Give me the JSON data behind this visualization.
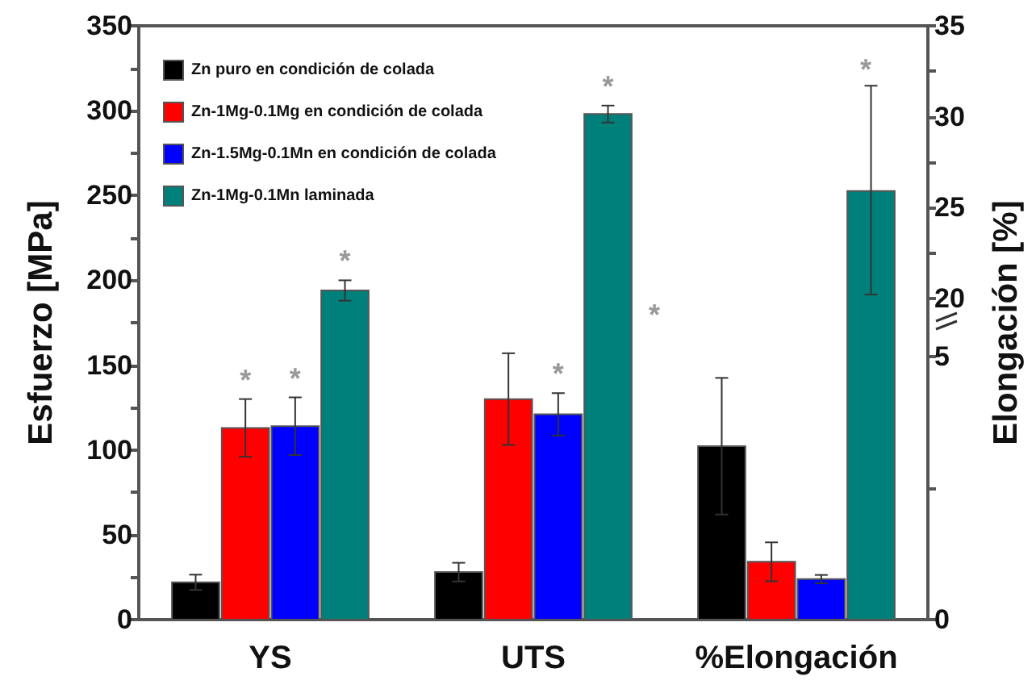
{
  "chart_data": {
    "type": "bar",
    "ylabel": "Esfuerzo [MPa]",
    "y2label": "Elongación [%]",
    "categories": [
      "YS",
      "UTS",
      "%Elongación"
    ],
    "series": [
      {
        "name": "Zn puro en condición de colada",
        "color": "#000000",
        "values": [
          22,
          28,
          null
        ],
        "errors": [
          4.5,
          5.5,
          null
        ]
      },
      {
        "name": "Zn-1Mg-0.1Mg en condición de colada",
        "color": "#ff0000",
        "values": [
          113,
          130,
          null
        ],
        "errors": [
          17,
          27,
          null
        ],
        "value_labels": [
          "*",
          null,
          null
        ]
      },
      {
        "name": "Zn-1.5Mg-0.1Mn en condición de colada",
        "color": "#0000ff",
        "values": [
          114,
          121,
          null
        ],
        "errors": [
          17,
          12.5,
          null
        ],
        "value_labels": [
          "*",
          "*",
          null
        ]
      },
      {
        "name": "Zn-1Mg-0.1Mn laminada",
        "color": "#00807a",
        "values": [
          194,
          298,
          null
        ],
        "errors": [
          6,
          5,
          null
        ],
        "value_labels": [
          "*",
          "*",
          null
        ]
      },
      {
        "color": "#000000",
        "axis": "y2",
        "values": [
          null,
          null,
          3.3
        ],
        "errors": [
          null,
          null,
          1.3
        ]
      },
      {
        "color": "#ff0000",
        "axis": "y2",
        "values": [
          null,
          null,
          1.1
        ],
        "errors": [
          null,
          null,
          0.37
        ]
      },
      {
        "color": "#0000ff",
        "axis": "y2",
        "values": [
          null,
          null,
          0.77
        ],
        "errors": [
          null,
          null,
          0.08
        ]
      },
      {
        "color": "#00807a",
        "axis": "y3",
        "values": [
          null,
          null,
          25.9
        ],
        "errors": [
          null,
          null,
          [
            20.2,
            31.7
          ]
        ]
      }
    ],
    "ylim": [
      0,
      350
    ],
    "yticks": [
      0,
      {
        "value": 25,
        "label": null
      },
      50,
      {
        "value": 75,
        "label": null
      },
      100,
      {
        "value": 125,
        "label": null
      },
      150,
      {
        "value": 175,
        "label": null
      },
      200,
      {
        "value": 225,
        "label": null
      },
      250,
      {
        "value": 275,
        "label": null
      },
      300,
      {
        "value": 325,
        "label": null
      },
      350
    ],
    "y2lim": [
      0,
      11.3
    ],
    "y2ticks": [
      0,
      {
        "value": 2.5,
        "label": null
      },
      5
    ],
    "y3lim": [
      2.3,
      35
    ],
    "y3ticks": [
      20,
      {
        "value": 22.5,
        "label": null
      },
      25,
      {
        "value": 27.5,
        "label": null
      },
      30,
      {
        "value": 32.5,
        "label": null
      },
      35
    ],
    "annotations": [
      "*",
      "*"
    ],
    "legend": "top left",
    "grid": false
  }
}
